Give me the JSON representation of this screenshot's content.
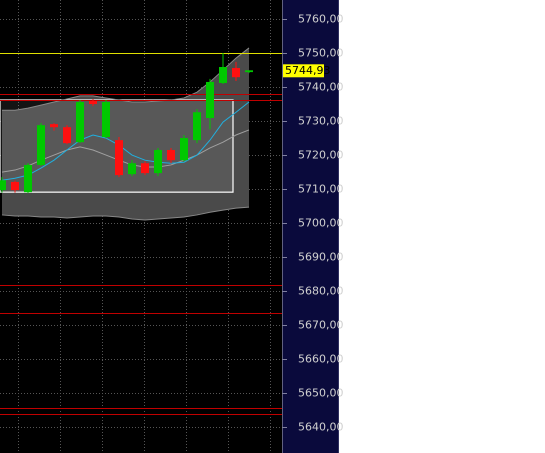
{
  "chart_data": {
    "type": "candlestick",
    "categories": [
      null,
      null,
      null,
      null,
      null,
      null,
      null,
      null,
      null,
      null,
      null,
      null,
      null,
      null,
      null,
      null,
      null,
      null,
      null,
      null
    ],
    "open": [
      5709.7,
      5712.1,
      5709.1,
      5717.1,
      5729.1,
      5728.2,
      5723.8,
      5735.9,
      5725.3,
      5724.4,
      5714.4,
      5717.6,
      5714.7,
      5721.5,
      5718.5,
      5724.4,
      5730.9,
      5741.2,
      5745.6,
      5744.4
    ],
    "high": [
      5713.5,
      5712.5,
      5717.6,
      5729.4,
      5729.4,
      5728.8,
      5736.2,
      5736.5,
      5736.2,
      5725.3,
      5718.5,
      5718.2,
      5722.1,
      5722.1,
      5725.9,
      5733.5,
      5742.4,
      5750.0,
      5747.4,
      5744.9
    ],
    "low": [
      5709.0,
      5709.0,
      5708.8,
      5716.8,
      5727.2,
      5723.2,
      5723.5,
      5734.4,
      5725.0,
      5713.5,
      5713.8,
      5714.1,
      5713.8,
      5717.6,
      5718.2,
      5723.5,
      5727.6,
      5740.9,
      5741.8,
      5744.1
    ],
    "close": [
      5712.6,
      5709.7,
      5717.1,
      5728.8,
      5728.2,
      5723.5,
      5735.6,
      5735.0,
      5735.6,
      5714.1,
      5717.6,
      5714.7,
      5721.5,
      5718.5,
      5725.0,
      5732.6,
      5741.5,
      5745.9,
      5742.9,
      5744.93
    ],
    "up_color": "#00c800",
    "down_color": "#ff1010",
    "indicators": [
      {
        "color": "#888888",
        "values": [
          5733.2,
          5733.2,
          5733.8,
          5734.7,
          5735.6,
          5736.5,
          5737.4,
          5737.4,
          5736.8,
          5736.2,
          5735.6,
          5735.6,
          5735.9,
          5736.2,
          5736.8,
          5738.5,
          5741.5,
          5745.0,
          5748.5,
          5751.5
        ]
      },
      {
        "color": "#888888",
        "values": [
          5702.4,
          5702.1,
          5702.1,
          5701.8,
          5701.8,
          5701.5,
          5701.8,
          5702.1,
          5702.1,
          5701.8,
          5701.2,
          5700.9,
          5701.2,
          5701.5,
          5701.8,
          5702.4,
          5703.2,
          5703.8,
          5704.4,
          5704.7
        ]
      },
      {
        "color": "#a0a0a0",
        "values": [
          5715.0,
          5715.6,
          5716.8,
          5718.5,
          5720.0,
          5721.5,
          5722.4,
          5721.5,
          5720.0,
          5718.5,
          5717.1,
          5716.5,
          5716.5,
          5717.1,
          5718.5,
          5720.0,
          5722.1,
          5723.8,
          5725.9,
          5727.4
        ]
      },
      {
        "color": "#20b0e0",
        "values": [
          5712.6,
          5713.2,
          5714.1,
          5716.2,
          5718.5,
          5721.5,
          5724.4,
          5725.9,
          5725.0,
          5722.9,
          5720.0,
          5718.5,
          5717.9,
          5717.6,
          5717.9,
          5720.0,
          5724.4,
          5729.7,
          5732.6,
          5735.6
        ]
      }
    ],
    "band_fill": "#4a4a4a",
    "box": {
      "top": 5736.2,
      "bottom": 5709.1,
      "color": "#ffffff"
    },
    "hlines": [
      {
        "value": 5750.0,
        "color": "#e0e000"
      },
      {
        "value": 5738.0,
        "color": "#c00000"
      },
      {
        "value": 5736.2,
        "color": "#c00000"
      },
      {
        "value": 5681.8,
        "color": "#c00000"
      },
      {
        "value": 5673.5,
        "color": "#c00000"
      },
      {
        "value": 5645.6,
        "color": "#c00000"
      },
      {
        "value": 5643.8,
        "color": "#c00000"
      }
    ],
    "last_price": {
      "value": 5744.93,
      "label": "5744,93",
      "color": "#ffff00"
    },
    "ylim": [
      5632.4,
      5765.6
    ],
    "yticks": [
      {
        "value": 5760,
        "label": "5760,00"
      },
      {
        "value": 5750,
        "label": "5750,00"
      },
      {
        "value": 5740,
        "label": "5740,00"
      },
      {
        "value": 5730,
        "label": "5730,00"
      },
      {
        "value": 5720,
        "label": "5720,00"
      },
      {
        "value": 5710,
        "label": "5710,00"
      },
      {
        "value": 5700,
        "label": "5700,00"
      },
      {
        "value": 5690,
        "label": "5690,00"
      },
      {
        "value": 5680,
        "label": "5680,00"
      },
      {
        "value": 5670,
        "label": "5670,00"
      },
      {
        "value": 5660,
        "label": "5660,00"
      },
      {
        "value": 5650,
        "label": "5650,00"
      },
      {
        "value": 5640,
        "label": "5640,00"
      }
    ],
    "grid": true
  }
}
